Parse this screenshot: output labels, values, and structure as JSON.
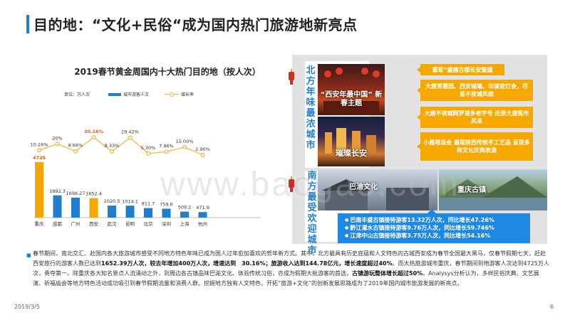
{
  "header": {
    "title": "目的地：“文化+民俗“成为国内热门旅游地新亮点"
  },
  "chart": {
    "title": "2019春节黄金周国内十大热门目的地（按人次）",
    "unit_label": "单位：万人次",
    "legend_bar": "城市游客人次",
    "legend_line": "增长率",
    "colors": {
      "bar": "#1f7ed0",
      "highlight": "#f6a800",
      "line": "#f3b32e"
    }
  },
  "chart_data": {
    "type": "bar",
    "categories": [
      "重庆",
      "成都",
      "广州",
      "西安",
      "武汉",
      "昆明",
      "北京",
      "深圳",
      "上海",
      "杭州"
    ],
    "series": [
      {
        "name": "城市游客人次",
        "values": [
          4725,
          1892.3,
          1696.27,
          1652.4,
          1020.5,
          1014.1,
          811.7,
          759.6,
          509.2,
          471.9
        ],
        "labels": [
          "4725",
          "1892.3",
          "1696.27",
          "1652.4",
          "1020.5",
          "1014.1",
          "811.7",
          "759.6",
          "509.2",
          "471.9"
        ]
      },
      {
        "name": "增长率",
        "values": [
          10.26,
          20,
          8.66,
          30.16,
          8.33,
          29.42,
          5.3,
          7.96,
          15.0,
          2.9
        ],
        "labels": [
          "10.26%",
          "20%",
          "8.66%",
          "30.16%",
          "8.33%",
          "29.42%",
          "5.30%",
          "7.96%",
          "15.00%",
          "2.90%"
        ]
      }
    ],
    "highlight_categories": [
      "重庆",
      "西安"
    ]
  },
  "north": {
    "label": "北方年味最浓城市",
    "photo1_caption": "“西安年最中国” 新春主题",
    "photo2_caption": "璀璨长安",
    "cards": [
      "重现“盛唐古都长安繁盛",
      "大唐芙蓉园、西安城墙、华清宫灯会，尽显不夜城风貌",
      "大唐不夜城网罗诸多老字号 还原大唐街市风采",
      "小雁塔庙会 展现陕西传统手工艺品 呈现多样文化庆典表演"
    ]
  },
  "south": {
    "label": "南方最受欢迎城市",
    "photo1_caption": "巴渝文化",
    "photo2_caption": "重庆古镇",
    "stats": [
      "巴南丰盛古镇接待游客13.32万人次，同比增长47.26%",
      "黔江濯水古镇接待游客9.76万人次，同比增长59.746%",
      "江津中山古镇接待游客3.75万人次，同比增长54.16%"
    ]
  },
  "body": {
    "p1": "春节期间，南北交汇、赴国内各大旅游城市感受不同地方特色年味已成为国人过年愈加喜欢的贺年新方式。其中，北方最具有历史底蕴和人文特色的古城西安成为春节全国最大黑马，仅春节假期七天，赶赴西安旅行的游客人数已达到",
    "b1": "1652.39万人次，较去年增加400万人次，增速达到　30.16%；旅游收入达到144.78亿元，增长速度超过40%",
    "p2": "。而大热旅游城市重庆，春节期间到地游客人次达到4725万人次，勇夺第一。除重庆各大知名景点人流涌动之外，到周边各古镇品味巴渝文化、体验传统习俗，亦成为假期大批游客的首选，",
    "b2": "古镇游玩整体增长超过50%",
    "p3": "。Analysys分析认为，多样民俗庆典、文艺展演、祈福庙会等地方特色活动成功吸引到春节假期流量和消费人群。挖掘地方独有人文特色，开拓“旅游+文化”的创新发展思路成为了2019年国内城市旅游发展的新亮点。"
  },
  "footer": {
    "date": "2019/3/5",
    "page": "6"
  },
  "watermark": "www.baogao.com"
}
